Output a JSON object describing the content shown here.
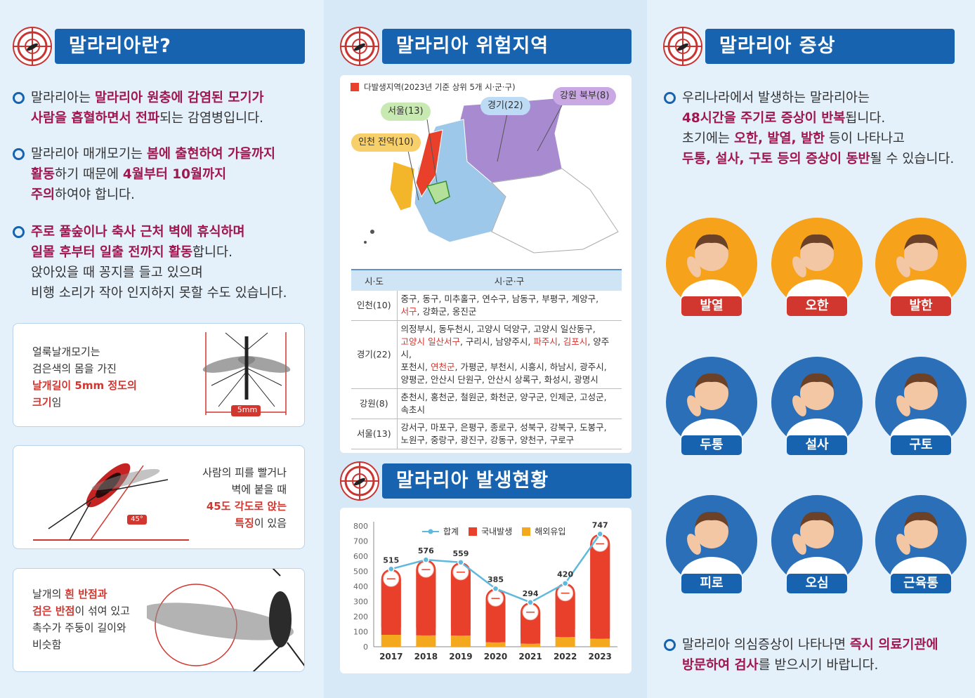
{
  "col1": {
    "title": "말라리아란?",
    "b1": {
      "p1": "말라리아는 ",
      "h1": "말라리아 원충에 감염된 모기가",
      "h2": "사람을 흡혈하면서 전파",
      "p2": "되는 감염병입니다."
    },
    "b2": {
      "p1": "말라리아 매개모기는 ",
      "h1": "봄에 출현하여 가을까지",
      "h2": "활동",
      "p2": "하기 때문에 ",
      "h3": "4월부터 10월까지",
      "h4": "주의",
      "p3": "하여야 합니다."
    },
    "b3": {
      "h1": "주로 풀숲이나 축사 근처 벽에 휴식하며",
      "h2": "일몰 후부터 일출 전까지 활동",
      "p1": "합니다.",
      "p2": "앉아있을 때 꽁지를 들고 있으며",
      "p3": "비행 소리가 작아 인지하지 못할 수도 있습니다."
    },
    "card1": {
      "l1": "얼룩날개모기는",
      "l2": "검은색의 몸을 가진",
      "l3": "날개길이 5mm 정도의",
      "l4a": "크기",
      "l4b": "임",
      "measure": "5mm"
    },
    "card2": {
      "l1": "사람의 피를 빨거나",
      "l2": "벽에 붙을 때",
      "l3": "45도 각도로 앉는",
      "l4a": "특징",
      "l4b": "이 있음",
      "angle": "45°"
    },
    "card3": {
      "l1a": "날개의 ",
      "l1b": "흰 반점과",
      "l2a": "검은 반점",
      "l2b": "이 섞여 있고",
      "l3": "촉수가 주둥이 길이와",
      "l4": "비슷함"
    }
  },
  "col2": {
    "title1": "말라리아 위험지역",
    "legend": "다발생지역(2023년 기준 상위 5개 시·군·구)",
    "pills": {
      "gangwon": "강원 북부(8)",
      "gyeonggi": "경기(22)",
      "seoul": "서울(13)",
      "incheon": "인천 전역(10)"
    },
    "table": {
      "h1": "시·도",
      "h2": "시·군·구",
      "r1": {
        "sido": "인천(10)",
        "a": "중구, 동구, 미추홀구, 연수구, 남동구, 부평구, 계양구,",
        "b": "서구",
        "c": ", 강화군, 옹진군"
      },
      "r2": {
        "sido": "경기(22)",
        "a": "의정부시, 동두천시, 고양시 덕양구, 고양시 일산동구,",
        "b1": "고양시 일산서구",
        "b2": ", 구리시, 남양주시, ",
        "b3": "파주시",
        "b4": ", ",
        "b5": "김포시",
        "b6": ", 양주시,",
        "c1": "포천시, ",
        "c2": "연천군",
        "c3": ", 가평군, 부천시, 시흥시, 하남시, 광주시,",
        "d": "양평군, 안산시 단원구, 안산시 상록구, 화성시, 광명시"
      },
      "r3": {
        "sido": "강원(8)",
        "a": "춘천시, 홍천군, 철원군, 화천군, 양구군, 인제군, 고성군,",
        "b": "속초시"
      },
      "r4": {
        "sido": "서울(13)",
        "a": "강서구, 마포구, 은평구, 종로구, 성북구, 강북구, 도봉구,",
        "b": "노원구, 중랑구, 광진구, 강동구, 양천구, 구로구"
      }
    },
    "title2": "말라리아 발생현황",
    "chart_legend": {
      "total": "합계",
      "domestic": "국내발생",
      "overseas": "해외유입"
    }
  },
  "chart_data": {
    "type": "bar",
    "categories": [
      "2017",
      "2018",
      "2019",
      "2020",
      "2021",
      "2022",
      "2023"
    ],
    "series": [
      {
        "name": "합계",
        "values": [
          515,
          576,
          559,
          385,
          294,
          420,
          747
        ]
      },
      {
        "name": "국내발생",
        "values": [
          436,
          501,
          485,
          356,
          274,
          356,
          694
        ]
      },
      {
        "name": "해외유입",
        "values": [
          79,
          75,
          74,
          29,
          20,
          64,
          53
        ]
      }
    ],
    "yticks": [
      "800",
      "700",
      "600",
      "500",
      "400",
      "300",
      "200",
      "100",
      "0"
    ],
    "ylim": [
      0,
      800
    ],
    "colors": {
      "total": "#5fb8dd",
      "domestic": "#e8402b",
      "overseas": "#f4a81d"
    }
  },
  "col3": {
    "title": "말라리아 증상",
    "b1": {
      "p1": "우리나라에서 발생하는 말라리아는",
      "h1": "48시간을 주기로 증상이 반복",
      "p2": "됩니다.",
      "p3": "초기에는 ",
      "h2": "오한, 발열, 발한",
      "p4": " 등이 나타나고",
      "h3": "두통, 설사, 구토 등의 증상이 동반",
      "p5": "될 수 있습니다."
    },
    "symptoms": [
      "발열",
      "오한",
      "발한",
      "두통",
      "설사",
      "구토",
      "피로",
      "오심",
      "근육통"
    ],
    "b2": {
      "p1": "말라리아 의심증상이 나타나면 ",
      "h1": "즉시 의료기관에",
      "h2": "방문하여 검사",
      "p2": "를 받으시기 바랍니다."
    }
  }
}
